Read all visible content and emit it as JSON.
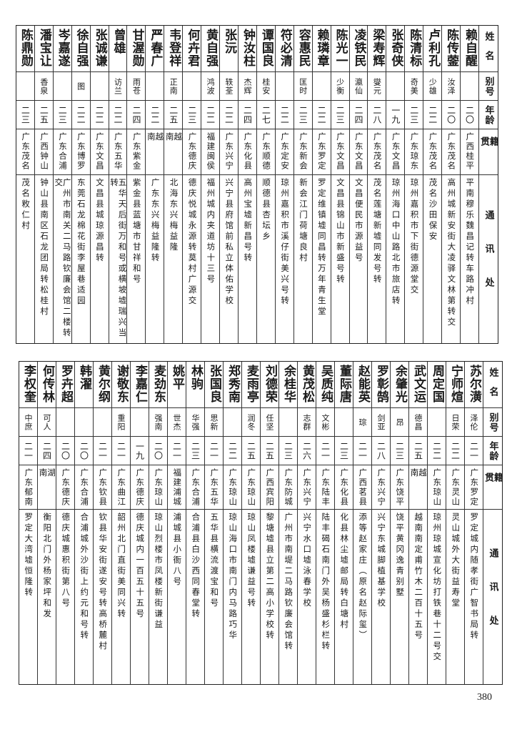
{
  "headers": {
    "name": "姓名",
    "alias": "别号",
    "age": "年龄",
    "origin": "籍贯",
    "address": "通讯处"
  },
  "upper_table": [
    [
      "赖自醒",
      "",
      "二〇",
      "广西桂平",
      "平南穆乐魏昌记转车路冲村"
    ],
    [
      "陈传蓥",
      "汝泽",
      "二〇",
      "广东茂名",
      "高州城新安街大凌驿文林第转交"
    ],
    [
      "卢利孔",
      "少雄",
      "二二",
      "广东茂名",
      "茂名沙田保安"
    ],
    [
      "陈清标",
      "奇美",
      "二三",
      "广东琼东",
      "琼州嘉积市下街德源堂交"
    ],
    [
      "张奇侠",
      "",
      "一九",
      "广东文昌",
      "琼州海口中山路北市旅店转"
    ],
    [
      "梁寿辉",
      "燮元",
      "二八",
      "广东茂名",
      "茂名莲塘新墟同发号转"
    ],
    [
      "凌铁民",
      "瀛仙",
      "二四",
      "广东文昌",
      "文昌便民市源益号"
    ],
    [
      "陈光一",
      "少衡",
      "二三",
      "广东文昌",
      "文昌县锦山市新盛号转"
    ],
    [
      "赖璘章",
      "",
      "二二",
      "广东罗定",
      "罗定维镇墟同昌转万年青生堂"
    ],
    [
      "容惠民",
      "匡时",
      "二三",
      "广东新会",
      "新会江门荷塘良村"
    ],
    [
      "符必清",
      "",
      "二二",
      "广东定安",
      "琼州嘉积市溪仔街美兴号转"
    ],
    [
      "谭国良",
      "桂安",
      "二七",
      "广东顺德",
      "顺德县杏坛乡"
    ],
    [
      "钟汝柱",
      "杰辉",
      "二四",
      "广东化县",
      "高州宝墟新昌号转"
    ],
    [
      "张沅",
      "轶荃",
      "二二",
      "广东兴宁",
      "兴宁县府馆前私立体佑学校"
    ],
    [
      "黄自强",
      "鸿波",
      "二二",
      "福建闽侯",
      "福州城内夹道坊十三号"
    ],
    [
      "何卉君",
      "",
      "二三",
      "广东德庆",
      "德庆悦城永源转莫村广源交"
    ],
    [
      "韦登祥",
      "正南",
      "二五",
      "越南",
      "北海东兴梅益隆"
    ],
    [
      "严春广",
      "",
      "二二",
      "越南",
      "广东东兴梅益隆转"
    ],
    [
      "甘渥勋",
      "雨苍",
      "二四",
      "广东紫金",
      "紫金县蓝塘市甘祥和号"
    ],
    [
      "曾雄",
      "访兰",
      "二二",
      "广东五华",
      "五华天后街万和号或横坡墟瑞兴当转"
    ],
    [
      "张诚谦",
      "",
      "二二",
      "广东文昌",
      "文昌县城琼源昌转"
    ],
    [
      "徐自强",
      "图",
      "二二",
      "广东博罗",
      "东莞石龙棉花街李屋巷适园"
    ],
    [
      "岑嘉遂",
      "",
      "二三",
      "广东合浦",
      "广州市南关二马路钦廉会馆二楼转交"
    ],
    [
      "潘宝让",
      "香泉",
      "二五",
      "广西钟山",
      "钟山县南区石龙团局转松桂村"
    ],
    [
      "陈鼎勋",
      "",
      "二三",
      "广东茂名",
      "茂名敉仁村"
    ]
  ],
  "lower_table": [
    [
      "苏尔潢",
      "泽伦",
      "二一",
      "广东罗定",
      "罗定城内随孝街广智书局转"
    ],
    [
      "宁师煊",
      "日荣",
      "二二",
      "广东灵山",
      "灵山城外大街益寿堂"
    ],
    [
      "周定国",
      "",
      "二二",
      "广东琼山",
      "琼州琼城宣化坊打铁巷十二号交"
    ],
    [
      "武文运",
      "德昌",
      "二五",
      "越南",
      "越南南定甫竹木二百十五号"
    ],
    [
      "余肇光",
      "昂",
      "二三",
      "广东饶平",
      "饶平黄冈逸青别墅"
    ],
    [
      "罗彰鹄",
      "剑亚",
      "二八",
      "广东兴宁",
      "兴宁东城脚植基学校"
    ],
    [
      "赵能英",
      "琮",
      "二一",
      "广西茗县",
      "添等赵家庄（原名赵际玺）"
    ],
    [
      "董际唐",
      "",
      "二三",
      "广东化县",
      "化县林尘墟邮局转白塘村"
    ],
    [
      "吴质纯",
      "文彬",
      "二一",
      "广东陆丰",
      "陆丰碣石南门外吴杨盛杉栏转"
    ],
    [
      "黄茂松",
      "志群",
      "二六",
      "广东兴宁",
      "兴宁水口墟泳春学校"
    ],
    [
      "余桂华",
      "",
      "二三",
      "广东防城",
      "广州市南堤二马路钦廉会馆转"
    ],
    [
      "刘德荣",
      "任坚",
      "二五",
      "广西宾阳",
      "黎塘墟县立第二高小学校转"
    ],
    [
      "麦雨亭",
      "润冬",
      "二五",
      "广东琼山",
      "琼山凤楼墟谦益号转"
    ],
    [
      "郑秀南",
      "",
      "二二",
      "广东琼山",
      "琼山海口市南门内马路巧华"
    ],
    [
      "张国良",
      "思新",
      "二一",
      "广东五华",
      "五华县横流渡宝和号"
    ],
    [
      "林驹",
      "华强",
      "二三",
      "广东合浦",
      "合浦县白沙西同春堂转"
    ],
    [
      "姚平",
      "世杰",
      "二一",
      "福建浦城",
      "浦城县小衙八号"
    ],
    [
      "麦劲东",
      "强南",
      "二〇",
      "广东琼山",
      "琼山烈楼市凤楼新街谦益"
    ],
    [
      "李嘉仁",
      "",
      "一九",
      "广东德庆",
      "德庆城内一百五十五号"
    ],
    [
      "谢敬东",
      "重阳",
      "二一",
      "广东曲江",
      "韶州北门直街美同兴转"
    ],
    [
      "黄尔纲",
      "",
      "二一",
      "广东钦县",
      "钦县华安街遂安号转高桥麓村"
    ],
    [
      "韩濯",
      "",
      "二〇",
      "广东合浦",
      "合浦城外沙街上约元和号转"
    ],
    [
      "罗卉超",
      "",
      "二〇",
      "广东德庆",
      "德庆城惠积街第八号"
    ],
    [
      "何传林",
      "可人",
      "二四",
      "湖南",
      "衡阳北门外杨家坪和发"
    ],
    [
      "李权奎",
      "中庶",
      "二一",
      "广东郁南",
      "罗定大湾墟恒隆转"
    ]
  ],
  "page_number": "380"
}
